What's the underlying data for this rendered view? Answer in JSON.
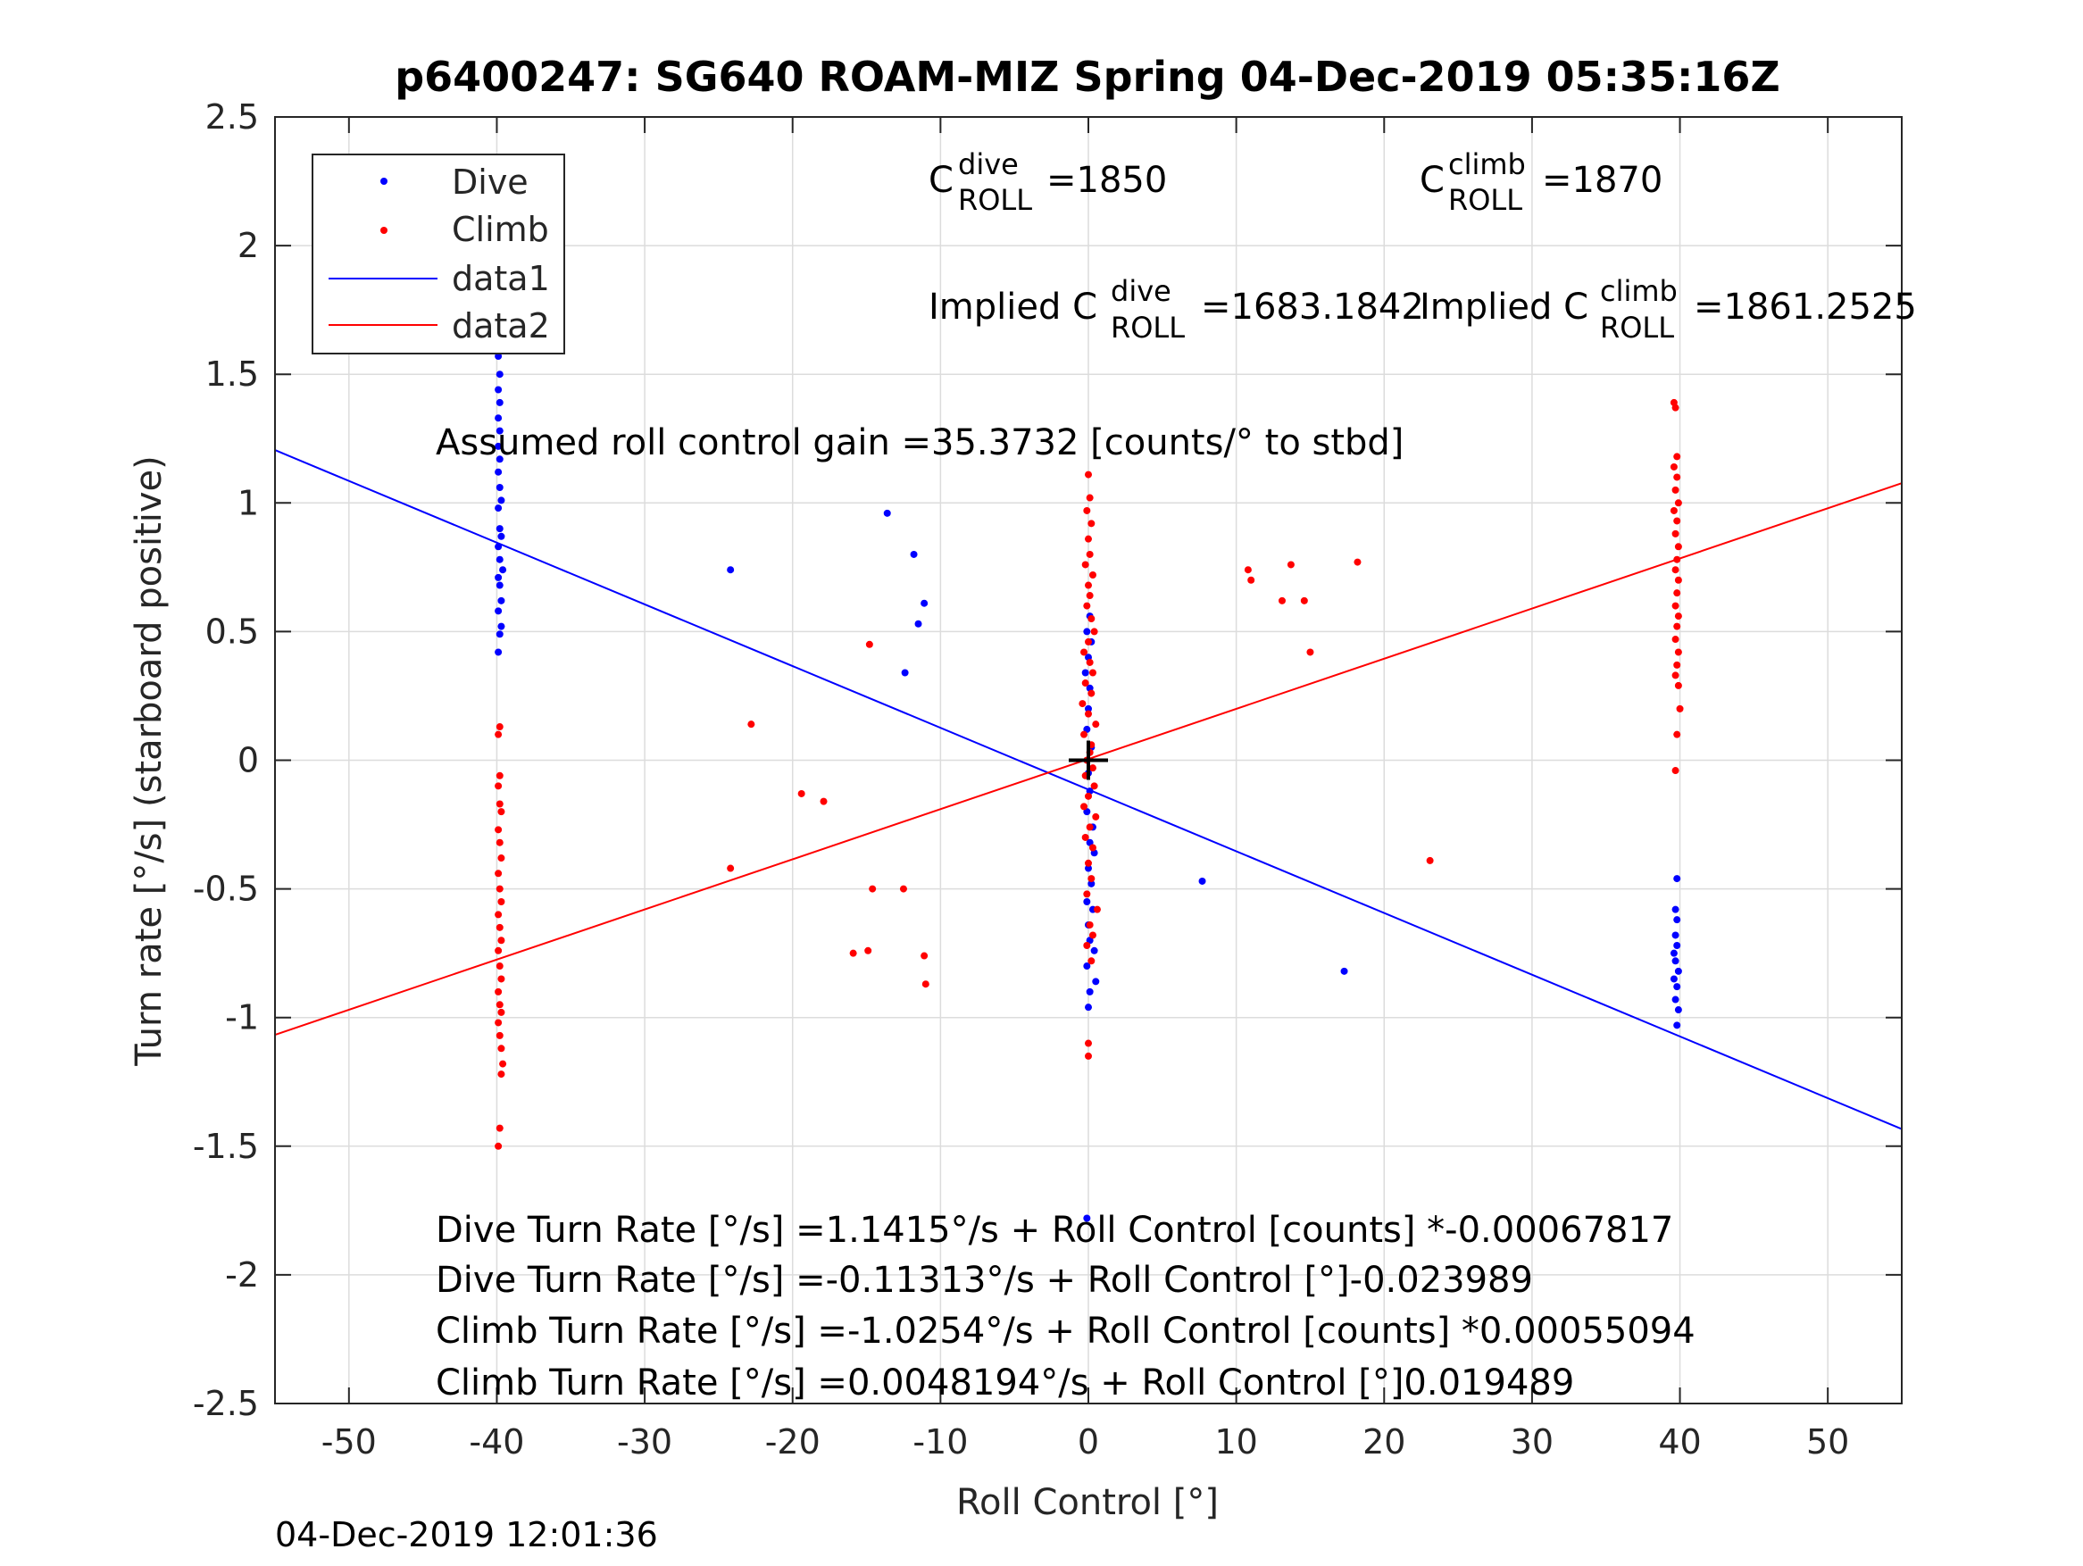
{
  "chart_data": {
    "type": "scatter",
    "title": "p6400247: SG640 ROAM-MIZ Spring 04-Dec-2019 05:35:16Z",
    "xlabel": "Roll Control [°]",
    "ylabel": "Turn rate [°/s] (starboard positive)",
    "xlim": [
      -55,
      55
    ],
    "ylim": [
      -2.5,
      2.5
    ],
    "xticks": [
      -50,
      -40,
      -30,
      -20,
      -10,
      0,
      10,
      20,
      30,
      40,
      50
    ],
    "xtick_labels": [
      "-50",
      "-40",
      "-30",
      "-20",
      "-10",
      "0",
      "10",
      "20",
      "30",
      "40",
      "50"
    ],
    "yticks": [
      -2.5,
      -2,
      -1.5,
      -1,
      -0.5,
      0,
      0.5,
      1,
      1.5,
      2,
      2.5
    ],
    "ytick_labels": [
      "-2.5",
      "-2",
      "-1.5",
      "-1",
      "-0.5",
      "0",
      "0.5",
      "1",
      "1.5",
      "2",
      "2.5"
    ],
    "grid": true,
    "legend_position": "top-left",
    "colors": {
      "dive": "#0000ff",
      "climb": "#ff0000",
      "axes": "#262626",
      "grid": "#dcdcdc"
    },
    "series": [
      {
        "name": "Dive",
        "kind": "points",
        "color": "#0000ff",
        "points": [
          [
            -39.8,
            1.68
          ],
          [
            -39.8,
            1.62
          ],
          [
            -39.9,
            1.57
          ],
          [
            -39.8,
            1.5
          ],
          [
            -39.9,
            1.44
          ],
          [
            -39.8,
            1.39
          ],
          [
            -39.9,
            1.33
          ],
          [
            -39.8,
            1.28
          ],
          [
            -39.9,
            1.22
          ],
          [
            -39.8,
            1.17
          ],
          [
            -39.9,
            1.12
          ],
          [
            -39.8,
            1.06
          ],
          [
            -39.7,
            1.01
          ],
          [
            -39.9,
            0.98
          ],
          [
            -39.8,
            0.9
          ],
          [
            -39.7,
            0.87
          ],
          [
            -39.9,
            0.83
          ],
          [
            -39.8,
            0.78
          ],
          [
            -39.6,
            0.74
          ],
          [
            -39.9,
            0.71
          ],
          [
            -39.8,
            0.68
          ],
          [
            -39.7,
            0.62
          ],
          [
            -39.9,
            0.58
          ],
          [
            -39.7,
            0.52
          ],
          [
            -39.8,
            0.49
          ],
          [
            -39.9,
            0.42
          ],
          [
            -24.2,
            0.74
          ],
          [
            -13.6,
            0.96
          ],
          [
            -11.8,
            0.8
          ],
          [
            -11.1,
            0.61
          ],
          [
            -11.5,
            0.53
          ],
          [
            -12.4,
            0.34
          ],
          [
            0.1,
            0.56
          ],
          [
            -0.1,
            0.5
          ],
          [
            0.2,
            0.46
          ],
          [
            0.0,
            0.4
          ],
          [
            -0.2,
            0.34
          ],
          [
            0.1,
            0.28
          ],
          [
            0.0,
            0.2
          ],
          [
            -0.1,
            0.12
          ],
          [
            0.2,
            0.05
          ],
          [
            0.0,
            -0.05
          ],
          [
            0.1,
            -0.12
          ],
          [
            -0.1,
            -0.2
          ],
          [
            0.3,
            -0.26
          ],
          [
            0.1,
            -0.32
          ],
          [
            0.4,
            -0.36
          ],
          [
            0.0,
            -0.42
          ],
          [
            0.2,
            -0.48
          ],
          [
            -0.1,
            -0.55
          ],
          [
            0.3,
            -0.58
          ],
          [
            0.0,
            -0.64
          ],
          [
            0.1,
            -0.7
          ],
          [
            0.4,
            -0.74
          ],
          [
            -0.1,
            -0.8
          ],
          [
            0.5,
            -0.86
          ],
          [
            0.1,
            -0.9
          ],
          [
            0.0,
            -0.96
          ],
          [
            -0.1,
            -1.78
          ],
          [
            7.7,
            -0.47
          ],
          [
            17.3,
            -0.82
          ],
          [
            39.8,
            -0.46
          ],
          [
            39.7,
            -0.58
          ],
          [
            39.8,
            -0.62
          ],
          [
            39.7,
            -0.68
          ],
          [
            39.8,
            -0.72
          ],
          [
            39.6,
            -0.75
          ],
          [
            39.7,
            -0.78
          ],
          [
            39.9,
            -0.82
          ],
          [
            39.6,
            -0.85
          ],
          [
            39.8,
            -0.88
          ],
          [
            39.7,
            -0.93
          ],
          [
            39.9,
            -0.97
          ],
          [
            39.8,
            -1.03
          ]
        ]
      },
      {
        "name": "Climb",
        "kind": "points",
        "color": "#ff0000",
        "points": [
          [
            -39.8,
            0.13
          ],
          [
            -39.9,
            0.1
          ],
          [
            -39.8,
            -0.06
          ],
          [
            -39.9,
            -0.1
          ],
          [
            -39.8,
            -0.17
          ],
          [
            -39.7,
            -0.2
          ],
          [
            -39.9,
            -0.27
          ],
          [
            -39.8,
            -0.32
          ],
          [
            -39.7,
            -0.38
          ],
          [
            -39.9,
            -0.44
          ],
          [
            -39.8,
            -0.5
          ],
          [
            -39.7,
            -0.55
          ],
          [
            -39.9,
            -0.6
          ],
          [
            -39.8,
            -0.65
          ],
          [
            -39.7,
            -0.7
          ],
          [
            -39.9,
            -0.74
          ],
          [
            -39.8,
            -0.8
          ],
          [
            -39.7,
            -0.85
          ],
          [
            -39.9,
            -0.9
          ],
          [
            -39.8,
            -0.95
          ],
          [
            -39.7,
            -0.98
          ],
          [
            -39.9,
            -1.02
          ],
          [
            -39.8,
            -1.07
          ],
          [
            -39.7,
            -1.12
          ],
          [
            -39.6,
            -1.18
          ],
          [
            -39.7,
            -1.22
          ],
          [
            -39.8,
            -1.43
          ],
          [
            -39.9,
            -1.5
          ],
          [
            -22.8,
            0.14
          ],
          [
            -24.2,
            -0.42
          ],
          [
            -19.4,
            -0.13
          ],
          [
            -17.9,
            -0.16
          ],
          [
            -14.8,
            0.45
          ],
          [
            -14.6,
            -0.5
          ],
          [
            -12.5,
            -0.5
          ],
          [
            -15.9,
            -0.75
          ],
          [
            -14.9,
            -0.74
          ],
          [
            -11.1,
            -0.76
          ],
          [
            -11.0,
            -0.87
          ],
          [
            0.0,
            1.11
          ],
          [
            0.1,
            1.02
          ],
          [
            -0.1,
            0.97
          ],
          [
            0.2,
            0.92
          ],
          [
            0.0,
            0.86
          ],
          [
            0.1,
            0.8
          ],
          [
            -0.2,
            0.76
          ],
          [
            0.3,
            0.72
          ],
          [
            0.0,
            0.68
          ],
          [
            0.1,
            0.64
          ],
          [
            -0.1,
            0.6
          ],
          [
            0.2,
            0.55
          ],
          [
            0.4,
            0.5
          ],
          [
            0.0,
            0.46
          ],
          [
            -0.3,
            0.42
          ],
          [
            0.1,
            0.38
          ],
          [
            0.3,
            0.34
          ],
          [
            -0.2,
            0.3
          ],
          [
            0.2,
            0.26
          ],
          [
            -0.4,
            0.22
          ],
          [
            0.0,
            0.18
          ],
          [
            0.5,
            0.14
          ],
          [
            -0.3,
            0.1
          ],
          [
            0.2,
            0.06
          ],
          [
            0.1,
            0.03
          ],
          [
            -0.1,
            0.0
          ],
          [
            0.3,
            -0.03
          ],
          [
            -0.2,
            -0.06
          ],
          [
            0.4,
            -0.1
          ],
          [
            0.0,
            -0.14
          ],
          [
            -0.3,
            -0.18
          ],
          [
            0.5,
            -0.22
          ],
          [
            0.1,
            -0.26
          ],
          [
            -0.2,
            -0.3
          ],
          [
            0.3,
            -0.34
          ],
          [
            0.0,
            -0.4
          ],
          [
            0.2,
            -0.46
          ],
          [
            -0.1,
            -0.52
          ],
          [
            0.6,
            -0.58
          ],
          [
            0.1,
            -0.64
          ],
          [
            0.3,
            -0.68
          ],
          [
            -0.1,
            -0.72
          ],
          [
            0.2,
            -0.78
          ],
          [
            0.0,
            -1.1
          ],
          [
            0.0,
            -1.15
          ],
          [
            10.8,
            0.74
          ],
          [
            11.0,
            0.7
          ],
          [
            13.7,
            0.76
          ],
          [
            13.1,
            0.62
          ],
          [
            14.6,
            0.62
          ],
          [
            15.0,
            0.42
          ],
          [
            18.2,
            0.77
          ],
          [
            23.1,
            -0.39
          ],
          [
            39.6,
            1.39
          ],
          [
            39.7,
            1.37
          ],
          [
            39.8,
            1.18
          ],
          [
            39.6,
            1.14
          ],
          [
            39.8,
            1.1
          ],
          [
            39.7,
            1.05
          ],
          [
            39.9,
            1.0
          ],
          [
            39.6,
            0.97
          ],
          [
            39.8,
            0.93
          ],
          [
            39.7,
            0.88
          ],
          [
            39.9,
            0.83
          ],
          [
            39.8,
            0.78
          ],
          [
            39.7,
            0.74
          ],
          [
            39.9,
            0.7
          ],
          [
            39.8,
            0.65
          ],
          [
            39.7,
            0.6
          ],
          [
            39.9,
            0.56
          ],
          [
            39.8,
            0.52
          ],
          [
            39.7,
            0.47
          ],
          [
            39.9,
            0.42
          ],
          [
            39.8,
            0.37
          ],
          [
            39.7,
            0.33
          ],
          [
            39.9,
            0.29
          ],
          [
            40.0,
            0.2
          ],
          [
            39.8,
            0.1
          ],
          [
            39.7,
            -0.04
          ]
        ]
      },
      {
        "name": "data1",
        "kind": "line",
        "color": "#0000ff",
        "x": [
          -55,
          55
        ],
        "y": [
          1.2054,
          -1.4332
        ]
      },
      {
        "name": "data2",
        "kind": "line",
        "color": "#ff0000",
        "x": [
          -55,
          55
        ],
        "y": [
          -1.0671,
          1.0767
        ]
      }
    ],
    "marker": {
      "kind": "plus",
      "x": 0,
      "y": 0,
      "color": "#000000"
    },
    "annotations": {
      "c_dive": {
        "base": "C",
        "sup": "dive",
        "sub": "ROLL",
        "value": "=1850"
      },
      "c_climb": {
        "base": "C",
        "sup": "climb",
        "sub": "ROLL",
        "value": "=1870"
      },
      "implied_dive": {
        "prefix": "Implied C",
        "sup": "dive",
        "sub": "ROLL",
        "value": "=1683.1842"
      },
      "implied_climb": {
        "prefix": "Implied C",
        "sup": "climb",
        "sub": "ROLL",
        "value": "=1861.2525"
      },
      "gain": "Assumed roll control gain =35.3732 [counts/° to stbd]",
      "equations": [
        "Dive Turn Rate [°/s] =1.1415°/s + Roll Control [counts] *-0.00067817",
        "Dive Turn Rate [°/s] =-0.11313°/s + Roll Control [°]-0.023989",
        "Climb Turn Rate [°/s] =-1.0254°/s + Roll Control [counts] *0.00055094",
        "Climb Turn Rate [°/s] =0.0048194°/s + Roll Control [°]0.019489"
      ]
    },
    "footer": "04-Dec-2019 12:01:36"
  }
}
